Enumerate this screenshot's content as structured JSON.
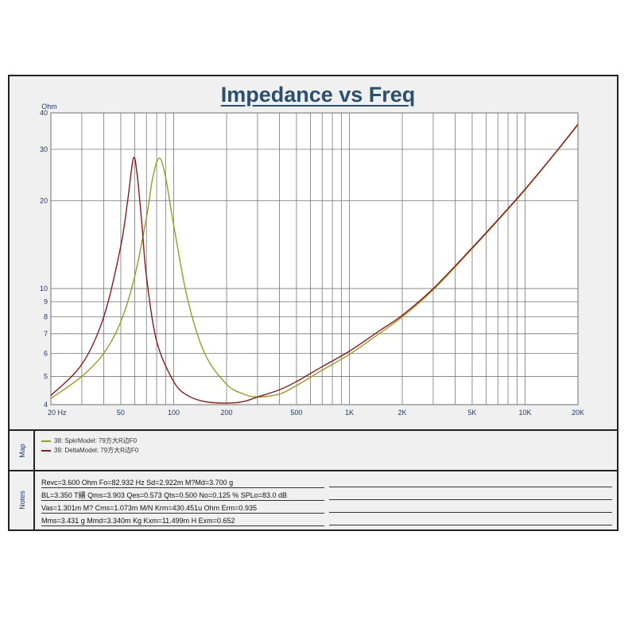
{
  "title": "Impedance vs Freq",
  "chart_data": {
    "type": "line",
    "title": "Impedance vs Freq",
    "xlabel": "",
    "ylabel": "Ohm",
    "xscale": "log",
    "yscale": "log",
    "xlim": [
      20,
      20000
    ],
    "ylim": [
      4,
      40
    ],
    "grid": true,
    "legend": "bottom-left",
    "x_tick_labels": [
      "20 Hz",
      "50",
      "100",
      "200",
      "500",
      "1K",
      "2K",
      "5K",
      "10K",
      "20K"
    ],
    "x_ticks": [
      20,
      50,
      100,
      200,
      500,
      1000,
      2000,
      5000,
      10000,
      20000
    ],
    "y_tick_labels": [
      "40",
      "30",
      "20",
      "10",
      "9",
      "8",
      "7",
      "6",
      "5",
      "4"
    ],
    "y_ticks": [
      40,
      30,
      20,
      10,
      9,
      8,
      7,
      6,
      5,
      4
    ],
    "series": [
      {
        "name": "38: SpkrModel: 79方大R边F0",
        "color": "#9a9a22",
        "x": [
          20,
          30,
          40,
          50,
          60,
          70,
          76,
          82.9,
          90,
          100,
          120,
          150,
          200,
          250,
          300,
          400,
          500,
          700,
          1000,
          1500,
          2000,
          3000,
          5000,
          7000,
          10000,
          15000,
          20000
        ],
        "y": [
          4.2,
          5.0,
          6.0,
          7.7,
          11.0,
          17.5,
          24.0,
          28.0,
          24.0,
          16.5,
          9.2,
          6.0,
          4.7,
          4.35,
          4.25,
          4.35,
          4.65,
          5.25,
          5.95,
          7.05,
          8.0,
          9.9,
          13.7,
          17.1,
          21.8,
          29.3,
          36.4
        ]
      },
      {
        "name": "39: DeltaModel: 79方大R边F0",
        "color": "#8b1a1a",
        "x": [
          20,
          30,
          40,
          50,
          55,
          59,
          62,
          66,
          70,
          80,
          100,
          120,
          150,
          200,
          250,
          300,
          400,
          500,
          700,
          1000,
          1500,
          2000,
          3000,
          5000,
          7000,
          10000,
          15000,
          20000
        ],
        "y": [
          4.3,
          5.5,
          8.0,
          14.0,
          20.5,
          28.0,
          24.5,
          16.5,
          11.0,
          6.6,
          4.8,
          4.3,
          4.1,
          4.05,
          4.1,
          4.25,
          4.5,
          4.8,
          5.4,
          6.1,
          7.2,
          8.1,
          10.0,
          13.8,
          17.2,
          21.9,
          29.4,
          36.6
        ]
      }
    ]
  },
  "map": {
    "label": "Map",
    "items": [
      {
        "label": "38: SpkrModel: 79方大R边F0",
        "color": "#9a9a22"
      },
      {
        "label": "39: DeltaModel: 79方大R边F0",
        "color": "#8b1a1a"
      }
    ]
  },
  "notes": {
    "label": "Notes",
    "lines": [
      "Revc=3.600 Ohm  Fo=82.932 Hz  Sd=2.922m M?Md=3.700 g",
      "BL=3.350 T縉  Qms=3.903  Qes=0.573  Qts=0.500  No=0.125 %  SPLo=83.0 dB",
      "Vas=1.301m M?  Cms=1.073m M/N  Krm=430.451u Ohm  Erm=0.935",
      "Mms=3.431 g  Mmd=3.340m Kg  Kxm=11.499m H  Exm=0.652"
    ]
  }
}
